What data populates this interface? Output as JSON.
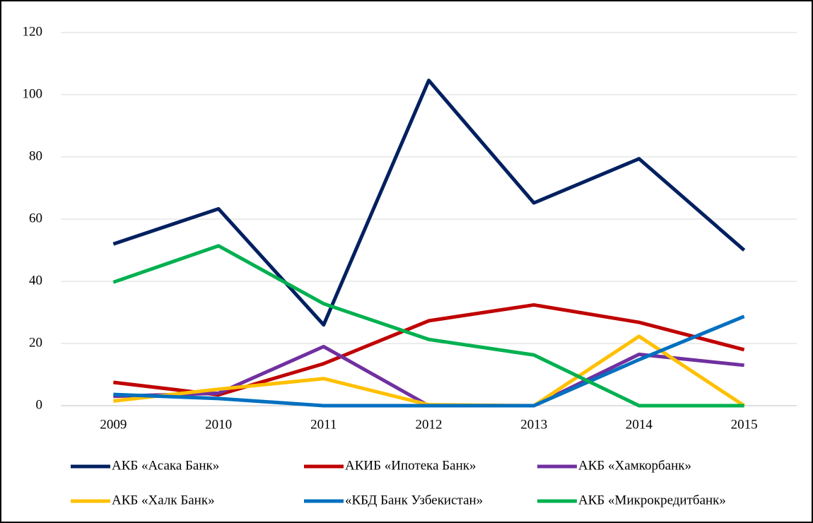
{
  "chart_data": {
    "type": "line",
    "categories": [
      "2009",
      "2010",
      "2011",
      "2012",
      "2013",
      "2014",
      "2015"
    ],
    "series": [
      {
        "name": "АКБ «Асака Банк»",
        "color": "#002060",
        "values": [
          52,
          63.3,
          26,
          104.6,
          65.2,
          79.4,
          50
        ]
      },
      {
        "name": "АКИБ «Ипотека Банк»",
        "color": "#c00000",
        "values": [
          7.5,
          3.5,
          13.5,
          27.3,
          32.4,
          26.8,
          18
        ]
      },
      {
        "name": "АКБ «Хамкорбанк»",
        "color": "#7030a0",
        "values": [
          3,
          4,
          19,
          0,
          0,
          16.5,
          13
        ]
      },
      {
        "name": "АКБ «Халк Банк»",
        "color": "#ffc000",
        "values": [
          1.5,
          5.3,
          8.7,
          0.3,
          0,
          22.3,
          0
        ]
      },
      {
        "name": "«КБД Банк Узбекистан»",
        "color": "#0070c0",
        "values": [
          3.6,
          2.3,
          0,
          0,
          0,
          14.8,
          28.7
        ]
      },
      {
        "name": "АКБ «Микрокредитбанк»",
        "color": "#00b050",
        "values": [
          39.7,
          51.4,
          32.8,
          21.3,
          16.3,
          0,
          0
        ]
      }
    ],
    "ylim": [
      0,
      120
    ],
    "yticks": [
      0,
      20,
      40,
      60,
      80,
      100,
      120
    ],
    "grid": true,
    "legend": "bottom"
  }
}
